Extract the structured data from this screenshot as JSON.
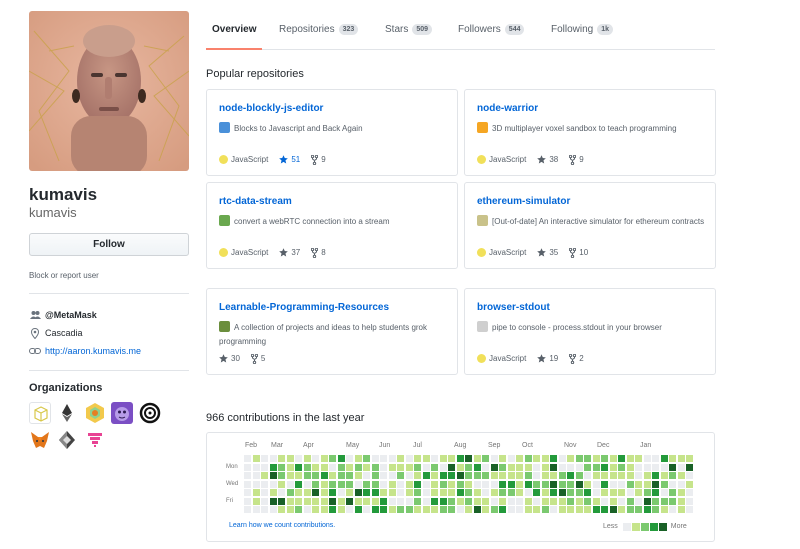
{
  "profile": {
    "name": "kumavis",
    "login": "kumavis",
    "follow_label": "Follow",
    "block_label": "Block or report user",
    "company": "@MetaMask",
    "location": "Cascadia",
    "website": "http://aaron.kumavis.me"
  },
  "organizations": {
    "title": "Organizations",
    "items": [
      "cube-org-icon",
      "ethereum-org-icon",
      "hexagon-org-icon",
      "purple-creature-org-icon",
      "swirl-org-icon",
      "metamask-fox-org-icon",
      "diamond-org-icon",
      "pink-invader-org-icon"
    ]
  },
  "tabs": [
    {
      "label": "Overview",
      "count": ""
    },
    {
      "label": "Repositories",
      "count": "323"
    },
    {
      "label": "Stars",
      "count": "509"
    },
    {
      "label": "Followers",
      "count": "544"
    },
    {
      "label": "Following",
      "count": "1k"
    }
  ],
  "popular": {
    "title": "Popular repositories",
    "repos": [
      {
        "name": "node-blockly-js-editor",
        "description": "Blocks to Javascript and Back Again",
        "language": "JavaScript",
        "stars": "51",
        "forks": "9",
        "emoji": "shuffle-emoji",
        "emoji_color": "#4a90d9"
      },
      {
        "name": "node-warrior",
        "description": "3D multiplayer voxel sandbox to teach programming",
        "language": "JavaScript",
        "stars": "38",
        "forks": "9",
        "emoji": "tiger-emoji",
        "emoji_color": "#f5a623"
      },
      {
        "name": "rtc-data-stream",
        "description": "convert a webRTC connection into a stream",
        "language": "JavaScript",
        "stars": "37",
        "forks": "8",
        "emoji": "tree-emoji",
        "emoji_color": "#6aa84f"
      },
      {
        "name": "ethereum-simulator",
        "description": "[Out-of-date] An interactive simulator for ethereum contracts",
        "language": "JavaScript",
        "stars": "35",
        "forks": "10",
        "emoji": "memo-emoji",
        "emoji_color": "#c9c28a"
      },
      {
        "name": "Learnable-Programming-Resources",
        "description": "A collection of projects and ideas to help students grok programming",
        "language": "",
        "stars": "30",
        "forks": "5",
        "emoji": "books-emoji",
        "emoji_color": "#6b8e3d"
      },
      {
        "name": "browser-stdout",
        "description": "pipe to console - process.stdout in your browser",
        "language": "JavaScript",
        "stars": "19",
        "forks": "2",
        "emoji": "page-emoji",
        "emoji_color": "#cfcfcf"
      }
    ]
  },
  "contributions": {
    "title": "966 contributions in the last year",
    "months": [
      "Feb",
      "Mar",
      "Apr",
      "May",
      "Jun",
      "Jul",
      "Aug",
      "Sep",
      "Oct",
      "Nov",
      "Dec",
      "Jan"
    ],
    "days": [
      "Mon",
      "Wed",
      "Fri"
    ],
    "learn_label": "Learn how we count contributions.",
    "less_label": "Less",
    "more_label": "More",
    "colors": [
      "#ebedf0",
      "#c6e48b",
      "#7bc96f",
      "#239a3b",
      "#196127"
    ]
  },
  "colors": {
    "link": "#0366d6",
    "javascript": "#f1e05a",
    "tab_accent": "#f9826c"
  }
}
